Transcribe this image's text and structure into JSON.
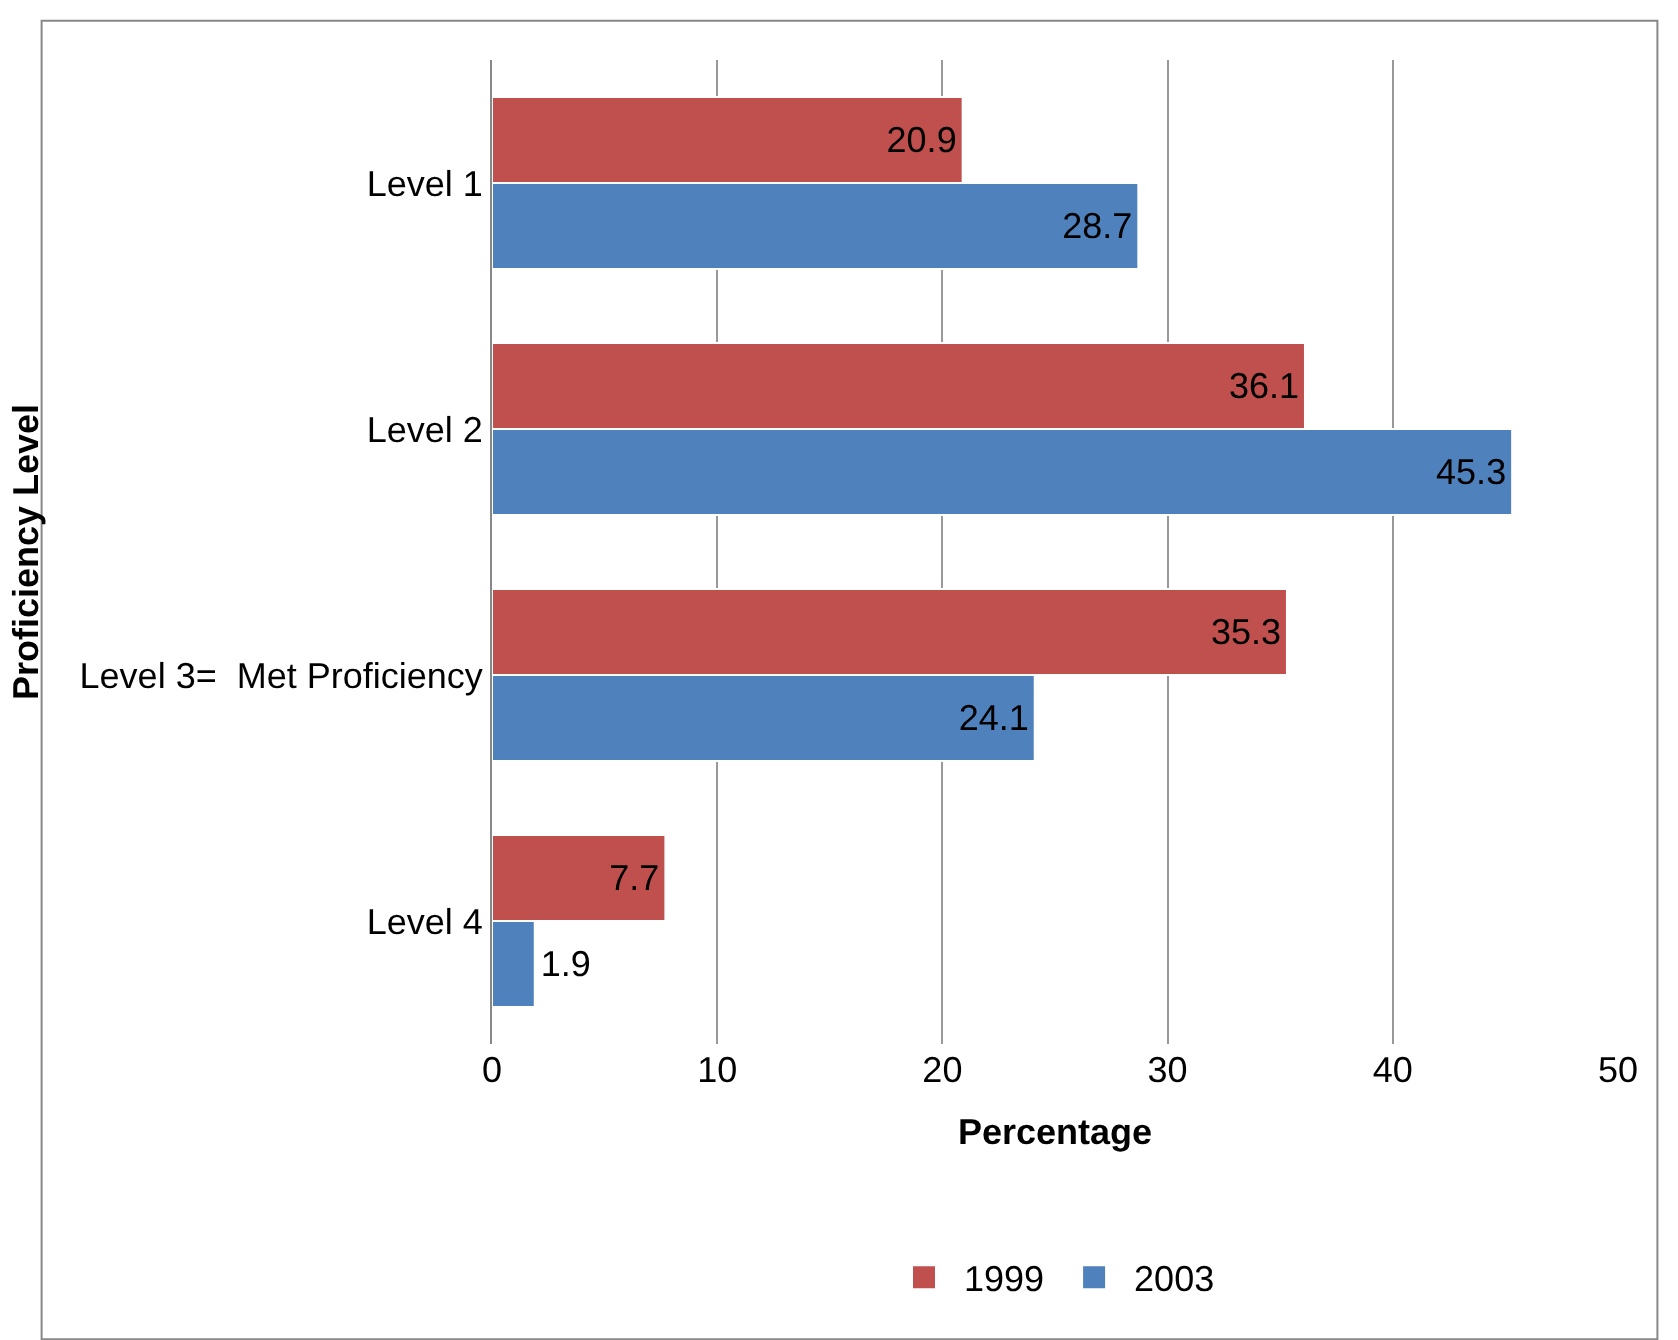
{
  "chart_data": {
    "type": "bar",
    "orientation": "horizontal",
    "xlabel": "Percentage",
    "ylabel": "Proficiency Level",
    "categories": [
      "Level 1",
      "Level 2",
      "Level 3=  Met Proficiency",
      "Level 4"
    ],
    "series": [
      {
        "name": "1999",
        "color": "#c0504d",
        "values": [
          20.9,
          36.1,
          35.3,
          7.7
        ]
      },
      {
        "name": "2003",
        "color": "#4f81bd",
        "values": [
          28.7,
          45.3,
          24.1,
          1.9
        ]
      }
    ],
    "xlim": [
      0,
      50
    ],
    "xticks": [
      0,
      10,
      20,
      30,
      40,
      50
    ],
    "grid": "x",
    "legend": "bottom",
    "data_labels": true
  }
}
